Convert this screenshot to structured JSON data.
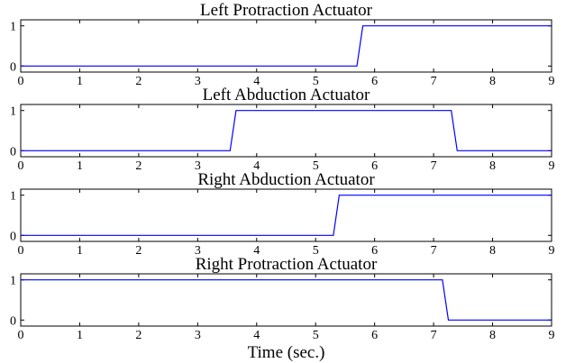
{
  "figure": {
    "xlabel": "Time (sec.)"
  },
  "chart_data": [
    {
      "type": "line",
      "title": "Left Protraction Actuator",
      "xlabel": "",
      "ylabel": "",
      "xlim": [
        0,
        9
      ],
      "ylim": [
        -0.15,
        1.15
      ],
      "xticks": [
        0,
        1,
        2,
        3,
        4,
        5,
        6,
        7,
        8,
        9
      ],
      "yticks": [
        0,
        1
      ],
      "grid": false,
      "series": [
        {
          "color": "#0000ff",
          "x": [
            0,
            5.7,
            5.8,
            9
          ],
          "y": [
            0,
            0,
            1,
            1
          ]
        }
      ]
    },
    {
      "type": "line",
      "title": "Left Abduction Actuator",
      "xlabel": "",
      "ylabel": "",
      "xlim": [
        0,
        9
      ],
      "ylim": [
        -0.15,
        1.15
      ],
      "xticks": [
        0,
        1,
        2,
        3,
        4,
        5,
        6,
        7,
        8,
        9
      ],
      "yticks": [
        0,
        1
      ],
      "grid": false,
      "series": [
        {
          "color": "#0000ff",
          "x": [
            0,
            3.55,
            3.65,
            7.3,
            7.4,
            9
          ],
          "y": [
            0,
            0,
            1,
            1,
            0,
            0
          ]
        }
      ]
    },
    {
      "type": "line",
      "title": "Right Abduction Actuator",
      "xlabel": "",
      "ylabel": "",
      "xlim": [
        0,
        9
      ],
      "ylim": [
        -0.15,
        1.15
      ],
      "xticks": [
        0,
        1,
        2,
        3,
        4,
        5,
        6,
        7,
        8,
        9
      ],
      "yticks": [
        0,
        1
      ],
      "grid": false,
      "series": [
        {
          "color": "#0000ff",
          "x": [
            0,
            5.3,
            5.4,
            9
          ],
          "y": [
            0,
            0,
            1,
            1
          ]
        }
      ]
    },
    {
      "type": "line",
      "title": "Right Protraction Actuator",
      "xlabel": "",
      "ylabel": "",
      "xlim": [
        0,
        9
      ],
      "ylim": [
        -0.15,
        1.15
      ],
      "xticks": [
        0,
        1,
        2,
        3,
        4,
        5,
        6,
        7,
        8,
        9
      ],
      "yticks": [
        0,
        1
      ],
      "grid": false,
      "series": [
        {
          "color": "#0000ff",
          "x": [
            0,
            7.15,
            7.25,
            9
          ],
          "y": [
            1,
            1,
            0,
            0
          ]
        }
      ]
    }
  ]
}
